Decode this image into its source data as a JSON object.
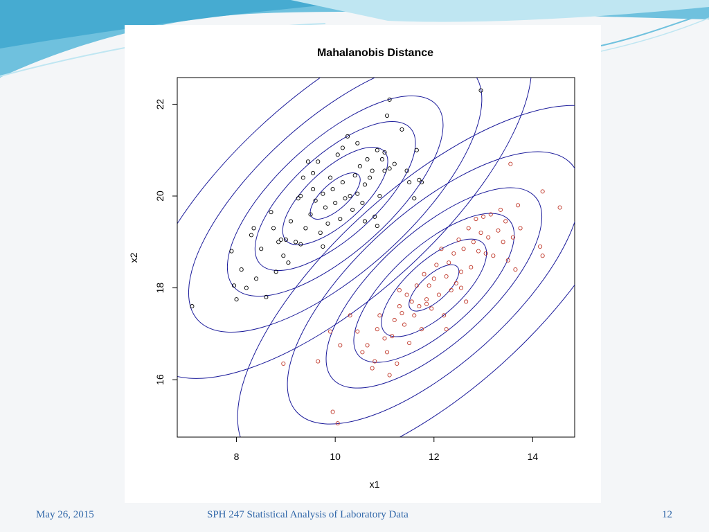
{
  "slide": {
    "footer_date": "May 26, 2015",
    "footer_course": "SPH 247 Statistical Analysis of Laboratory Data",
    "page_number": "12",
    "colors": {
      "banner": "#6fc1de",
      "banner_light": "#bfe6f2",
      "footer_text": "#2f66a8"
    }
  },
  "chart_data": {
    "type": "scatter",
    "title": "Mahalanobis Distance",
    "xlabel": "x1",
    "ylabel": "x2",
    "xlim": [
      6.8,
      14.85
    ],
    "ylim": [
      14.75,
      22.58
    ],
    "x_ticks": [
      8,
      10,
      12,
      14
    ],
    "y_ticks": [
      16,
      18,
      20,
      22
    ],
    "grid": false,
    "legend": "none",
    "contour_color": "#1a1a9a",
    "series": [
      {
        "color": "#000000",
        "center": [
          10,
          20
        ],
        "points": [
          [
            7.1,
            17.6
          ],
          [
            7.9,
            18.8
          ],
          [
            7.95,
            18.05
          ],
          [
            8.0,
            17.75
          ],
          [
            8.1,
            18.4
          ],
          [
            8.2,
            18.0
          ],
          [
            8.3,
            19.15
          ],
          [
            8.35,
            19.3
          ],
          [
            8.4,
            18.2
          ],
          [
            8.5,
            18.85
          ],
          [
            8.6,
            17.8
          ],
          [
            8.7,
            19.65
          ],
          [
            8.75,
            19.3
          ],
          [
            8.8,
            18.35
          ],
          [
            8.85,
            19.0
          ],
          [
            8.9,
            19.05
          ],
          [
            8.95,
            18.7
          ],
          [
            9.0,
            19.05
          ],
          [
            9.05,
            18.55
          ],
          [
            9.1,
            19.45
          ],
          [
            9.2,
            19.0
          ],
          [
            9.25,
            19.95
          ],
          [
            9.3,
            18.95
          ],
          [
            9.35,
            20.4
          ],
          [
            9.4,
            19.3
          ],
          [
            9.45,
            20.75
          ],
          [
            9.5,
            19.6
          ],
          [
            9.55,
            20.15
          ],
          [
            9.6,
            19.9
          ],
          [
            9.65,
            20.75
          ],
          [
            9.7,
            19.2
          ],
          [
            9.75,
            20.05
          ],
          [
            9.8,
            19.75
          ],
          [
            9.85,
            19.4
          ],
          [
            9.9,
            20.4
          ],
          [
            9.95,
            20.15
          ],
          [
            10.0,
            19.85
          ],
          [
            10.05,
            20.9
          ],
          [
            10.1,
            19.5
          ],
          [
            10.15,
            20.3
          ],
          [
            10.2,
            19.95
          ],
          [
            10.25,
            21.3
          ],
          [
            10.3,
            20.0
          ],
          [
            10.35,
            19.7
          ],
          [
            10.4,
            20.45
          ],
          [
            10.45,
            20.05
          ],
          [
            10.5,
            20.65
          ],
          [
            10.55,
            19.85
          ],
          [
            10.6,
            20.25
          ],
          [
            10.65,
            20.8
          ],
          [
            10.7,
            20.4
          ],
          [
            10.75,
            20.55
          ],
          [
            10.8,
            19.55
          ],
          [
            10.85,
            21.0
          ],
          [
            10.9,
            20.0
          ],
          [
            10.95,
            20.8
          ],
          [
            11.0,
            20.55
          ],
          [
            11.05,
            21.75
          ],
          [
            11.1,
            22.1
          ],
          [
            11.2,
            20.7
          ],
          [
            11.35,
            21.45
          ],
          [
            11.45,
            20.55
          ],
          [
            11.5,
            20.3
          ],
          [
            11.6,
            19.95
          ],
          [
            11.65,
            21.0
          ],
          [
            11.7,
            20.35
          ],
          [
            11.75,
            20.3
          ],
          [
            12.95,
            22.3
          ],
          [
            10.15,
            21.05
          ],
          [
            9.75,
            18.9
          ],
          [
            9.3,
            20.0
          ],
          [
            10.6,
            19.45
          ],
          [
            11.0,
            20.95
          ],
          [
            10.45,
            21.15
          ],
          [
            9.55,
            20.5
          ],
          [
            10.85,
            19.35
          ],
          [
            11.1,
            20.6
          ]
        ]
      },
      {
        "color": "#c0392b",
        "center": [
          12,
          18
        ],
        "points": [
          [
            8.95,
            16.35
          ],
          [
            9.65,
            16.4
          ],
          [
            9.9,
            17.05
          ],
          [
            9.95,
            15.3
          ],
          [
            10.05,
            15.05
          ],
          [
            10.1,
            16.75
          ],
          [
            10.3,
            17.4
          ],
          [
            10.45,
            17.05
          ],
          [
            10.55,
            16.6
          ],
          [
            10.65,
            16.75
          ],
          [
            10.75,
            16.25
          ],
          [
            10.8,
            16.4
          ],
          [
            10.85,
            17.1
          ],
          [
            10.9,
            17.4
          ],
          [
            11.0,
            16.9
          ],
          [
            11.05,
            16.6
          ],
          [
            11.1,
            16.1
          ],
          [
            11.15,
            16.95
          ],
          [
            11.2,
            17.3
          ],
          [
            11.25,
            16.35
          ],
          [
            11.3,
            17.6
          ],
          [
            11.35,
            17.45
          ],
          [
            11.4,
            17.2
          ],
          [
            11.45,
            17.85
          ],
          [
            11.5,
            16.8
          ],
          [
            11.55,
            17.7
          ],
          [
            11.6,
            17.4
          ],
          [
            11.65,
            18.05
          ],
          [
            11.7,
            17.6
          ],
          [
            11.75,
            17.1
          ],
          [
            11.8,
            18.3
          ],
          [
            11.85,
            17.75
          ],
          [
            11.9,
            18.05
          ],
          [
            11.95,
            17.55
          ],
          [
            12.0,
            18.2
          ],
          [
            12.05,
            18.5
          ],
          [
            12.1,
            17.85
          ],
          [
            12.15,
            18.85
          ],
          [
            12.2,
            17.4
          ],
          [
            12.25,
            18.25
          ],
          [
            12.3,
            18.55
          ],
          [
            12.35,
            17.95
          ],
          [
            12.4,
            18.75
          ],
          [
            12.45,
            18.1
          ],
          [
            12.5,
            19.05
          ],
          [
            12.55,
            18.35
          ],
          [
            12.6,
            18.85
          ],
          [
            12.65,
            17.7
          ],
          [
            12.7,
            19.3
          ],
          [
            12.75,
            18.45
          ],
          [
            12.8,
            19.0
          ],
          [
            12.85,
            19.5
          ],
          [
            12.9,
            18.8
          ],
          [
            12.95,
            19.2
          ],
          [
            13.0,
            19.55
          ],
          [
            13.05,
            18.75
          ],
          [
            13.1,
            19.1
          ],
          [
            13.15,
            19.6
          ],
          [
            13.2,
            18.7
          ],
          [
            13.3,
            19.25
          ],
          [
            13.35,
            19.7
          ],
          [
            13.4,
            19.0
          ],
          [
            13.45,
            19.45
          ],
          [
            13.5,
            18.6
          ],
          [
            13.6,
            19.1
          ],
          [
            13.7,
            19.8
          ],
          [
            13.75,
            19.3
          ],
          [
            13.55,
            20.7
          ],
          [
            14.2,
            20.1
          ],
          [
            14.55,
            19.75
          ],
          [
            14.15,
            18.9
          ],
          [
            14.2,
            18.7
          ],
          [
            13.65,
            18.4
          ],
          [
            12.55,
            18.0
          ],
          [
            11.3,
            17.95
          ],
          [
            11.85,
            17.65
          ],
          [
            12.25,
            17.1
          ]
        ]
      }
    ]
  }
}
